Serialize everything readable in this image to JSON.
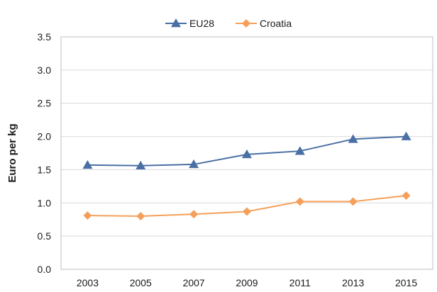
{
  "chart_data": {
    "type": "line",
    "xlabel": "",
    "ylabel": "Euro per kg",
    "ylim": [
      0,
      3.5
    ],
    "yticks": [
      "0.0",
      "0.5",
      "1.0",
      "1.5",
      "2.0",
      "2.5",
      "3.0",
      "3.5"
    ],
    "categories": [
      "2003",
      "2005",
      "2007",
      "2009",
      "2011",
      "2013",
      "2015"
    ],
    "grid": "horizontal",
    "legend_position": "top-center",
    "series": [
      {
        "name": "EU28",
        "color": "#4a6fa5",
        "marker": "triangle",
        "values": [
          1.57,
          1.56,
          1.58,
          1.73,
          1.78,
          1.96,
          2.0
        ]
      },
      {
        "name": "Croatia",
        "color": "#f5a05a",
        "marker": "diamond",
        "values": [
          0.81,
          0.8,
          0.83,
          0.87,
          1.02,
          1.02,
          1.11
        ]
      }
    ]
  }
}
